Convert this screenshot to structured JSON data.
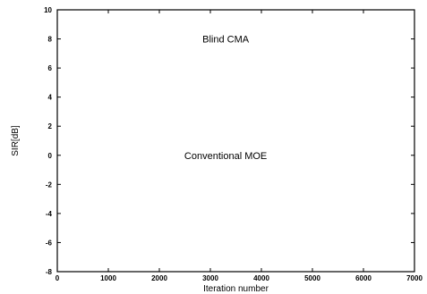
{
  "chart_data": {
    "type": "line",
    "title": "",
    "xlabel": "Iteration number",
    "ylabel": "SIR[dB]",
    "xlim": [
      0,
      7000
    ],
    "ylim": [
      -8,
      10
    ],
    "x_ticks": [
      0,
      1000,
      2000,
      3000,
      4000,
      5000,
      6000,
      7000
    ],
    "x_tick_labels": [
      "0",
      "1000",
      "2000",
      "3000",
      "4000",
      "5000",
      "6000",
      "7000"
    ],
    "y_ticks": [
      -8,
      -6,
      -4,
      -2,
      0,
      2,
      4,
      6,
      8,
      10
    ],
    "y_tick_labels": [
      "-8",
      "-6",
      "-4",
      "-2",
      "0",
      "2",
      "4",
      "6",
      "8",
      "10"
    ],
    "grid": false,
    "series": [],
    "annotations": [
      {
        "text": "Blind CMA",
        "x": 3300,
        "y": 8
      },
      {
        "text": "Conventional MOE",
        "x": 3300,
        "y": 0
      }
    ],
    "colors": {
      "axis": "#000000",
      "background": "#ffffff"
    }
  }
}
